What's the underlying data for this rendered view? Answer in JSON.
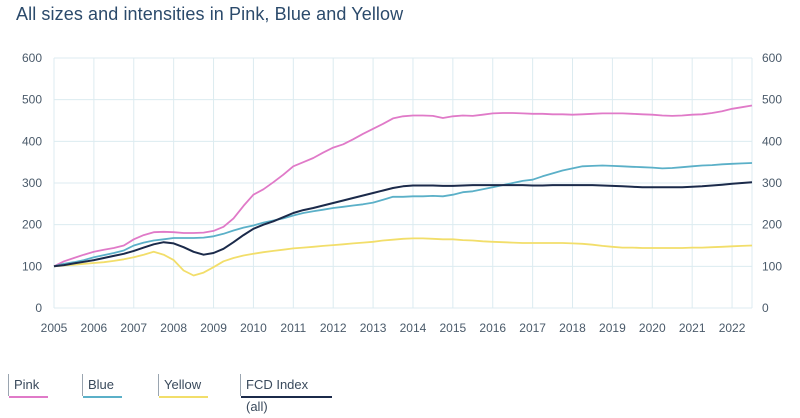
{
  "title": "All sizes and intensities in Pink, Blue and Yellow",
  "chart_data": {
    "type": "line",
    "title": "All sizes and intensities in Pink, Blue and Yellow",
    "xlabel": "",
    "ylabel": "",
    "xlim": [
      2005,
      2022.5
    ],
    "ylim": [
      0,
      600
    ],
    "x_ticks": [
      "2005",
      "2006",
      "2007",
      "2008",
      "2009",
      "2010",
      "2011",
      "2012",
      "2013",
      "2014",
      "2015",
      "2016",
      "2017",
      "2018",
      "2019",
      "2020",
      "2021",
      "2022"
    ],
    "y_ticks": [
      "0",
      "100",
      "200",
      "300",
      "400",
      "500",
      "600"
    ],
    "grid": true,
    "legend_position": "bottom",
    "series": [
      {
        "name": "Pink",
        "color": "#e07ac8",
        "points": [
          [
            2005,
            100
          ],
          [
            2005.25,
            112
          ],
          [
            2005.5,
            120
          ],
          [
            2005.75,
            128
          ],
          [
            2006,
            135
          ],
          [
            2006.25,
            140
          ],
          [
            2006.5,
            144
          ],
          [
            2006.75,
            150
          ],
          [
            2007,
            165
          ],
          [
            2007.25,
            175
          ],
          [
            2007.5,
            182
          ],
          [
            2007.75,
            183
          ],
          [
            2008,
            182
          ],
          [
            2008.25,
            180
          ],
          [
            2008.5,
            180
          ],
          [
            2008.75,
            181
          ],
          [
            2009,
            185
          ],
          [
            2009.25,
            195
          ],
          [
            2009.5,
            215
          ],
          [
            2009.75,
            245
          ],
          [
            2010,
            272
          ],
          [
            2010.25,
            285
          ],
          [
            2010.5,
            302
          ],
          [
            2010.75,
            320
          ],
          [
            2011,
            340
          ],
          [
            2011.25,
            350
          ],
          [
            2011.5,
            360
          ],
          [
            2011.75,
            373
          ],
          [
            2012,
            385
          ],
          [
            2012.25,
            393
          ],
          [
            2012.5,
            405
          ],
          [
            2012.75,
            418
          ],
          [
            2013,
            430
          ],
          [
            2013.25,
            442
          ],
          [
            2013.5,
            455
          ],
          [
            2013.75,
            460
          ],
          [
            2014,
            462
          ],
          [
            2014.25,
            462
          ],
          [
            2014.5,
            461
          ],
          [
            2014.75,
            456
          ],
          [
            2015,
            460
          ],
          [
            2015.25,
            462
          ],
          [
            2015.5,
            461
          ],
          [
            2015.75,
            464
          ],
          [
            2016,
            467
          ],
          [
            2016.25,
            468
          ],
          [
            2016.5,
            468
          ],
          [
            2016.75,
            467
          ],
          [
            2017,
            466
          ],
          [
            2017.25,
            466
          ],
          [
            2017.5,
            465
          ],
          [
            2017.75,
            465
          ],
          [
            2018,
            464
          ],
          [
            2018.25,
            465
          ],
          [
            2018.5,
            466
          ],
          [
            2018.75,
            467
          ],
          [
            2019,
            467
          ],
          [
            2019.25,
            467
          ],
          [
            2019.5,
            466
          ],
          [
            2019.75,
            465
          ],
          [
            2020,
            464
          ],
          [
            2020.25,
            462
          ],
          [
            2020.5,
            461
          ],
          [
            2020.75,
            462
          ],
          [
            2021,
            464
          ],
          [
            2021.25,
            465
          ],
          [
            2021.5,
            468
          ],
          [
            2021.75,
            472
          ],
          [
            2022,
            478
          ],
          [
            2022.25,
            482
          ],
          [
            2022.5,
            486
          ]
        ]
      },
      {
        "name": "Blue",
        "color": "#5bb0c8",
        "points": [
          [
            2005,
            100
          ],
          [
            2005.25,
            106
          ],
          [
            2005.5,
            110
          ],
          [
            2005.75,
            115
          ],
          [
            2006,
            122
          ],
          [
            2006.25,
            127
          ],
          [
            2006.5,
            132
          ],
          [
            2006.75,
            138
          ],
          [
            2007,
            150
          ],
          [
            2007.25,
            157
          ],
          [
            2007.5,
            162
          ],
          [
            2007.75,
            165
          ],
          [
            2008,
            168
          ],
          [
            2008.25,
            168
          ],
          [
            2008.5,
            168
          ],
          [
            2008.75,
            169
          ],
          [
            2009,
            172
          ],
          [
            2009.25,
            178
          ],
          [
            2009.5,
            186
          ],
          [
            2009.75,
            193
          ],
          [
            2010,
            198
          ],
          [
            2010.25,
            205
          ],
          [
            2010.5,
            210
          ],
          [
            2010.75,
            215
          ],
          [
            2011,
            222
          ],
          [
            2011.25,
            228
          ],
          [
            2011.5,
            232
          ],
          [
            2011.75,
            236
          ],
          [
            2012,
            240
          ],
          [
            2012.25,
            243
          ],
          [
            2012.5,
            246
          ],
          [
            2012.75,
            249
          ],
          [
            2013,
            253
          ],
          [
            2013.25,
            260
          ],
          [
            2013.5,
            267
          ],
          [
            2013.75,
            267
          ],
          [
            2014,
            268
          ],
          [
            2014.25,
            268
          ],
          [
            2014.5,
            269
          ],
          [
            2014.75,
            268
          ],
          [
            2015,
            272
          ],
          [
            2015.25,
            278
          ],
          [
            2015.5,
            280
          ],
          [
            2015.75,
            285
          ],
          [
            2016,
            290
          ],
          [
            2016.25,
            295
          ],
          [
            2016.5,
            300
          ],
          [
            2016.75,
            305
          ],
          [
            2017,
            308
          ],
          [
            2017.25,
            316
          ],
          [
            2017.5,
            323
          ],
          [
            2017.75,
            330
          ],
          [
            2018,
            335
          ],
          [
            2018.25,
            340
          ],
          [
            2018.5,
            341
          ],
          [
            2018.75,
            342
          ],
          [
            2019,
            341
          ],
          [
            2019.25,
            340
          ],
          [
            2019.5,
            339
          ],
          [
            2019.75,
            338
          ],
          [
            2020,
            337
          ],
          [
            2020.25,
            335
          ],
          [
            2020.5,
            336
          ],
          [
            2020.75,
            338
          ],
          [
            2021,
            340
          ],
          [
            2021.25,
            342
          ],
          [
            2021.5,
            343
          ],
          [
            2021.75,
            345
          ],
          [
            2022,
            346
          ],
          [
            2022.25,
            347
          ],
          [
            2022.5,
            348
          ]
        ]
      },
      {
        "name": "Yellow",
        "color": "#f2de6a",
        "points": [
          [
            2005,
            100
          ],
          [
            2005.25,
            102
          ],
          [
            2005.5,
            104
          ],
          [
            2005.75,
            106
          ],
          [
            2006,
            108
          ],
          [
            2006.25,
            110
          ],
          [
            2006.5,
            113
          ],
          [
            2006.75,
            117
          ],
          [
            2007,
            122
          ],
          [
            2007.25,
            128
          ],
          [
            2007.5,
            135
          ],
          [
            2007.75,
            128
          ],
          [
            2008,
            115
          ],
          [
            2008.25,
            90
          ],
          [
            2008.5,
            78
          ],
          [
            2008.75,
            85
          ],
          [
            2009,
            98
          ],
          [
            2009.25,
            112
          ],
          [
            2009.5,
            120
          ],
          [
            2009.75,
            126
          ],
          [
            2010,
            130
          ],
          [
            2010.25,
            134
          ],
          [
            2010.5,
            137
          ],
          [
            2010.75,
            140
          ],
          [
            2011,
            143
          ],
          [
            2011.25,
            145
          ],
          [
            2011.5,
            147
          ],
          [
            2011.75,
            149
          ],
          [
            2012,
            151
          ],
          [
            2012.25,
            153
          ],
          [
            2012.5,
            155
          ],
          [
            2012.75,
            157
          ],
          [
            2013,
            159
          ],
          [
            2013.25,
            162
          ],
          [
            2013.5,
            164
          ],
          [
            2013.75,
            166
          ],
          [
            2014,
            167
          ],
          [
            2014.25,
            167
          ],
          [
            2014.5,
            166
          ],
          [
            2014.75,
            165
          ],
          [
            2015,
            165
          ],
          [
            2015.25,
            163
          ],
          [
            2015.5,
            162
          ],
          [
            2015.75,
            160
          ],
          [
            2016,
            159
          ],
          [
            2016.25,
            158
          ],
          [
            2016.5,
            157
          ],
          [
            2016.75,
            156
          ],
          [
            2017,
            156
          ],
          [
            2017.25,
            156
          ],
          [
            2017.5,
            156
          ],
          [
            2017.75,
            156
          ],
          [
            2018,
            155
          ],
          [
            2018.25,
            154
          ],
          [
            2018.5,
            152
          ],
          [
            2018.75,
            149
          ],
          [
            2019,
            147
          ],
          [
            2019.25,
            145
          ],
          [
            2019.5,
            145
          ],
          [
            2019.75,
            144
          ],
          [
            2020,
            144
          ],
          [
            2020.25,
            144
          ],
          [
            2020.5,
            144
          ],
          [
            2020.75,
            144
          ],
          [
            2021,
            145
          ],
          [
            2021.25,
            145
          ],
          [
            2021.5,
            146
          ],
          [
            2021.75,
            147
          ],
          [
            2022,
            148
          ],
          [
            2022.25,
            149
          ],
          [
            2022.5,
            150
          ]
        ]
      },
      {
        "name": "FCD Index (all)",
        "color": "#1b2a4a",
        "points": [
          [
            2005,
            100
          ],
          [
            2005.25,
            103
          ],
          [
            2005.5,
            107
          ],
          [
            2005.75,
            111
          ],
          [
            2006,
            115
          ],
          [
            2006.25,
            120
          ],
          [
            2006.5,
            125
          ],
          [
            2006.75,
            130
          ],
          [
            2007,
            137
          ],
          [
            2007.25,
            145
          ],
          [
            2007.5,
            153
          ],
          [
            2007.75,
            158
          ],
          [
            2008,
            155
          ],
          [
            2008.25,
            146
          ],
          [
            2008.5,
            135
          ],
          [
            2008.75,
            128
          ],
          [
            2009,
            132
          ],
          [
            2009.25,
            142
          ],
          [
            2009.5,
            158
          ],
          [
            2009.75,
            175
          ],
          [
            2010,
            190
          ],
          [
            2010.25,
            200
          ],
          [
            2010.5,
            208
          ],
          [
            2010.75,
            218
          ],
          [
            2011,
            228
          ],
          [
            2011.25,
            235
          ],
          [
            2011.5,
            240
          ],
          [
            2011.75,
            246
          ],
          [
            2012,
            252
          ],
          [
            2012.25,
            258
          ],
          [
            2012.5,
            264
          ],
          [
            2012.75,
            270
          ],
          [
            2013,
            276
          ],
          [
            2013.25,
            282
          ],
          [
            2013.5,
            288
          ],
          [
            2013.75,
            292
          ],
          [
            2014,
            294
          ],
          [
            2014.25,
            294
          ],
          [
            2014.5,
            294
          ],
          [
            2014.75,
            293
          ],
          [
            2015,
            293
          ],
          [
            2015.25,
            294
          ],
          [
            2015.5,
            295
          ],
          [
            2015.75,
            295
          ],
          [
            2016,
            295
          ],
          [
            2016.25,
            295
          ],
          [
            2016.5,
            295
          ],
          [
            2016.75,
            295
          ],
          [
            2017,
            294
          ],
          [
            2017.25,
            294
          ],
          [
            2017.5,
            295
          ],
          [
            2017.75,
            295
          ],
          [
            2018,
            295
          ],
          [
            2018.25,
            295
          ],
          [
            2018.5,
            295
          ],
          [
            2018.75,
            294
          ],
          [
            2019,
            293
          ],
          [
            2019.25,
            292
          ],
          [
            2019.5,
            291
          ],
          [
            2019.75,
            290
          ],
          [
            2020,
            290
          ],
          [
            2020.25,
            290
          ],
          [
            2020.5,
            290
          ],
          [
            2020.75,
            290
          ],
          [
            2021,
            291
          ],
          [
            2021.25,
            292
          ],
          [
            2021.5,
            294
          ],
          [
            2021.75,
            296
          ],
          [
            2022,
            298
          ],
          [
            2022.25,
            300
          ],
          [
            2022.5,
            302
          ]
        ]
      }
    ]
  },
  "legend": {
    "items": [
      "Pink",
      "Blue",
      "Yellow",
      "FCD Index (all)"
    ]
  }
}
